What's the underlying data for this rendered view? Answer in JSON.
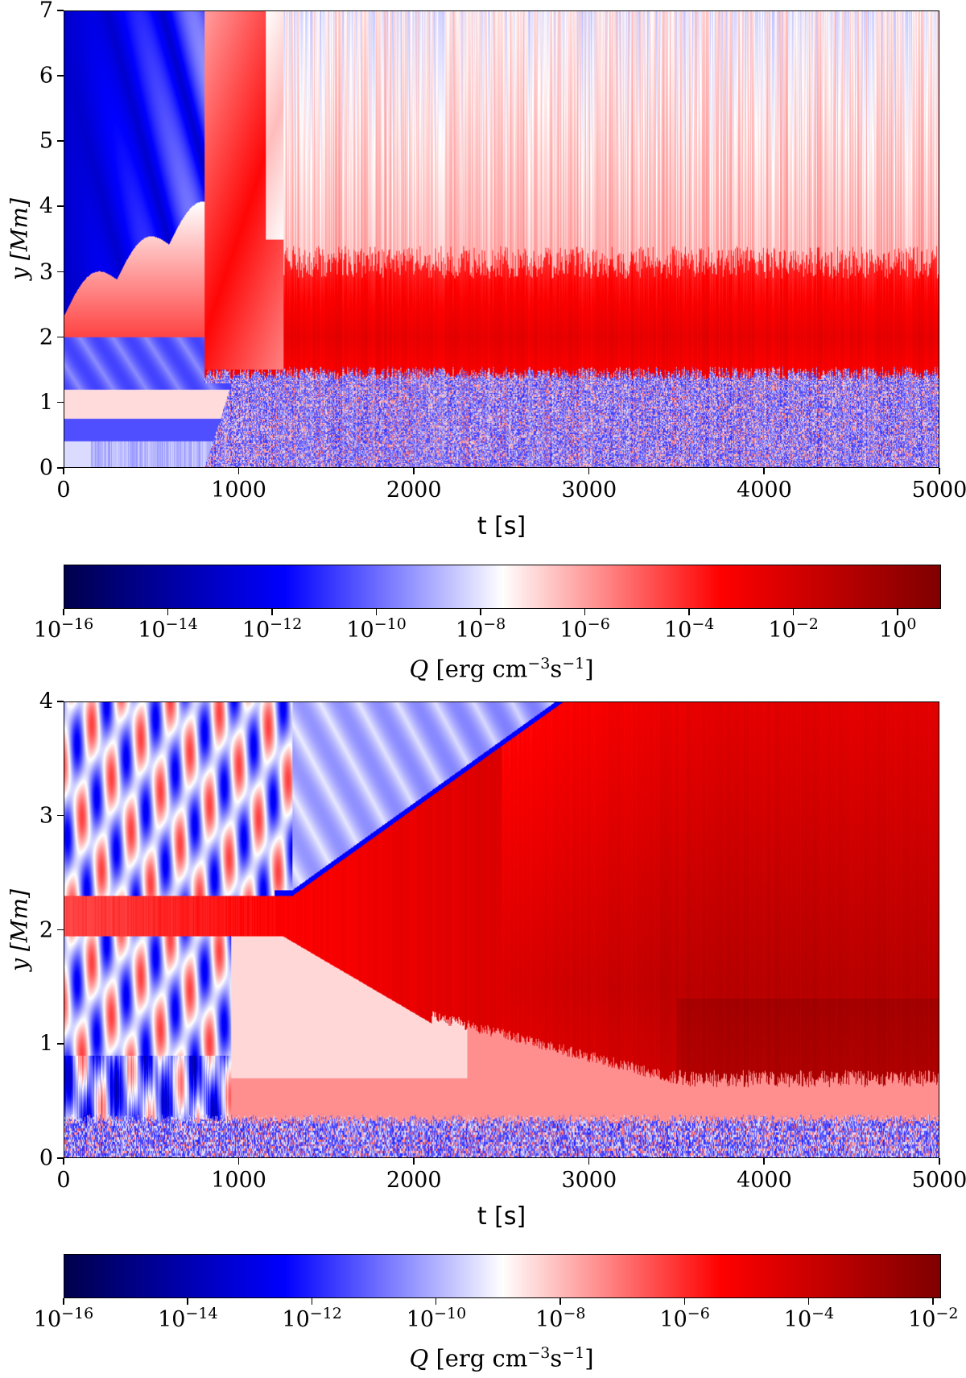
{
  "chart_data": [
    {
      "type": "heatmap",
      "panel": "top",
      "xlabel": "t [s]",
      "ylabel": "y [Mm]",
      "xlim": [
        0,
        5000
      ],
      "ylim": [
        0,
        7
      ],
      "xticks": [
        "0",
        "1000",
        "2000",
        "3000",
        "4000",
        "5000"
      ],
      "yticks": [
        "0",
        "1",
        "2",
        "3",
        "4",
        "5",
        "6",
        "7"
      ],
      "colormap": "seismic",
      "color_scale": "log",
      "colorbar": {
        "label_q": "Q",
        "label_units": "[erg cm",
        "label_exp1": "−3",
        "label_s": "s",
        "label_exp2": "−1",
        "label_close": "]",
        "range_log10": [
          -16,
          0.8
        ],
        "ticks": [
          {
            "base": "10",
            "exp": "−16",
            "v": -16
          },
          {
            "base": "10",
            "exp": "−14",
            "v": -14
          },
          {
            "base": "10",
            "exp": "−12",
            "v": -12
          },
          {
            "base": "10",
            "exp": "−10",
            "v": -10
          },
          {
            "base": "10",
            "exp": "−8",
            "v": -8
          },
          {
            "base": "10",
            "exp": "−6",
            "v": -6
          },
          {
            "base": "10",
            "exp": "−4",
            "v": -4
          },
          {
            "base": "10",
            "exp": "−2",
            "v": -2
          },
          {
            "base": "10",
            "exp": "0",
            "v": 0
          }
        ]
      }
    },
    {
      "type": "heatmap",
      "panel": "bottom",
      "xlabel": "t [s]",
      "ylabel": "y [Mm]",
      "xlim": [
        0,
        5000
      ],
      "ylim": [
        0,
        4
      ],
      "xticks": [
        "0",
        "1000",
        "2000",
        "3000",
        "4000",
        "5000"
      ],
      "yticks": [
        "0",
        "1",
        "2",
        "3",
        "4"
      ],
      "colormap": "seismic",
      "color_scale": "log",
      "colorbar": {
        "label_q": "Q",
        "label_units": "[erg cm",
        "label_exp1": "−3",
        "label_s": "s",
        "label_exp2": "−1",
        "label_close": "]",
        "range_log10": [
          -16,
          -1.9
        ],
        "ticks": [
          {
            "base": "10",
            "exp": "−16",
            "v": -16
          },
          {
            "base": "10",
            "exp": "−14",
            "v": -14
          },
          {
            "base": "10",
            "exp": "−12",
            "v": -12
          },
          {
            "base": "10",
            "exp": "−10",
            "v": -10
          },
          {
            "base": "10",
            "exp": "−8",
            "v": -8
          },
          {
            "base": "10",
            "exp": "−6",
            "v": -6
          },
          {
            "base": "10",
            "exp": "−4",
            "v": -4
          },
          {
            "base": "10",
            "exp": "−2",
            "v": -2
          }
        ]
      }
    }
  ]
}
